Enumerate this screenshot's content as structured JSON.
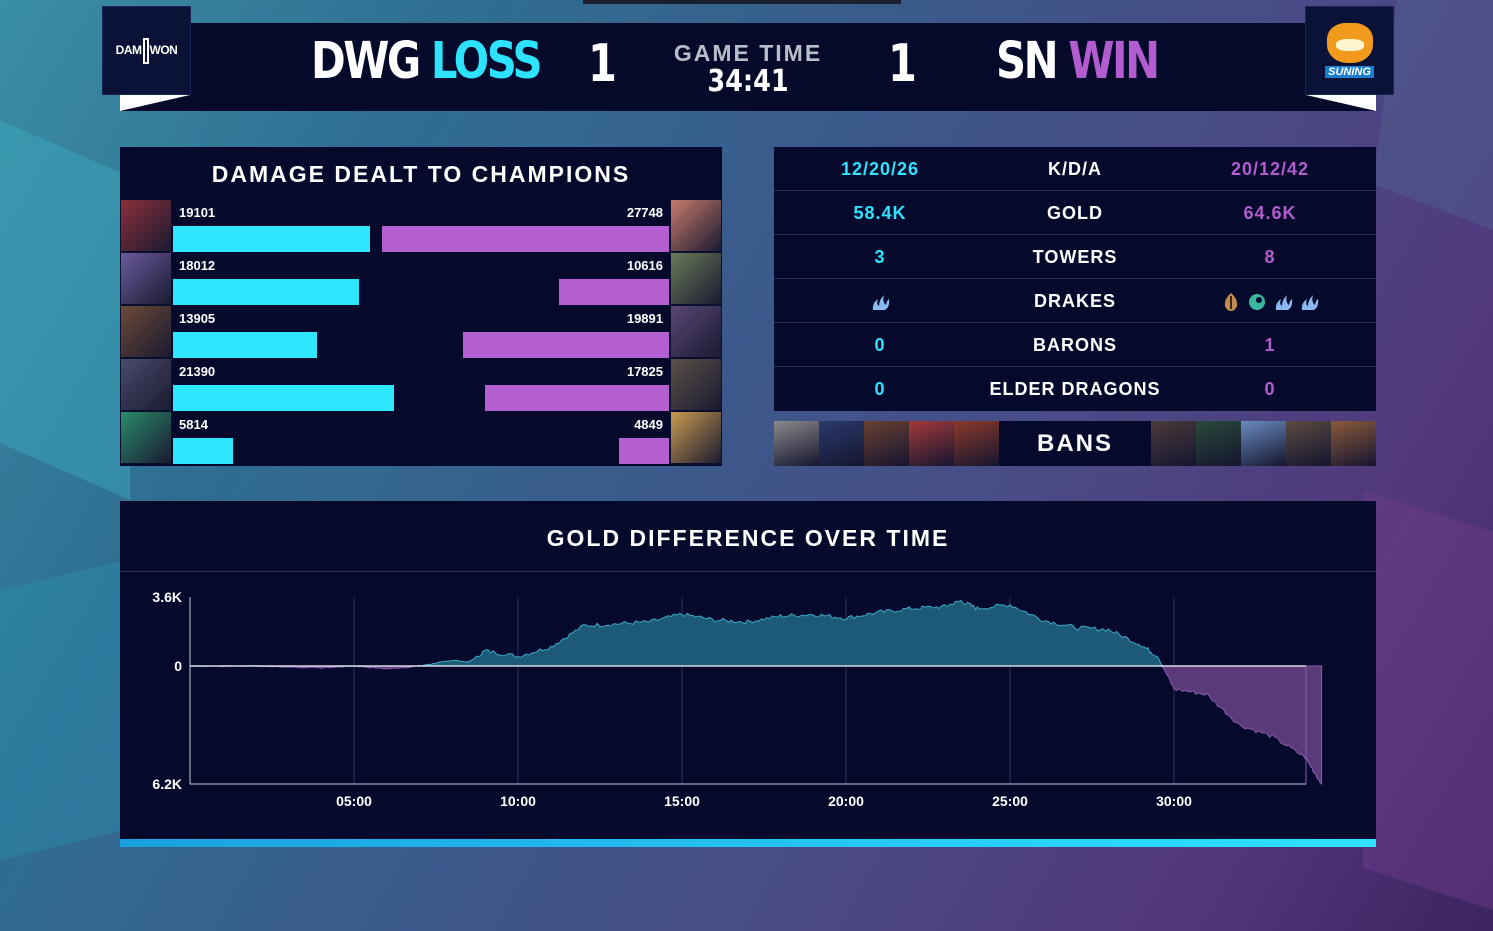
{
  "header": {
    "left_team": {
      "tag": "DWG",
      "result": "LOSS",
      "score": "1"
    },
    "right_team": {
      "tag": "SN",
      "result": "WIN",
      "score": "1"
    },
    "game_time_label": "GAME TIME",
    "game_time": "34:41",
    "left_logo_text": {
      "a": "DAM",
      "b": "WON"
    },
    "right_logo_text": "SUNING"
  },
  "damage": {
    "title": "DAMAGE DEALT TO CHAMPIONS",
    "max": 30000,
    "rows": [
      {
        "blue": 19101,
        "blue_label": "19101",
        "red": 27748,
        "red_label": "27748",
        "blue_color": "#8a2f3b",
        "red_color": "#c77b6c"
      },
      {
        "blue": 18012,
        "blue_label": "18012",
        "red": 10616,
        "red_label": "10616",
        "blue_color": "#6a5a9c",
        "red_color": "#6a7a58"
      },
      {
        "blue": 13905,
        "blue_label": "13905",
        "red": 19891,
        "red_label": "19891",
        "blue_color": "#6b4a36",
        "red_color": "#5a4678"
      },
      {
        "blue": 21390,
        "blue_label": "21390",
        "red": 17825,
        "red_label": "17825",
        "blue_color": "#4a4a6c",
        "red_color": "#5a5048"
      },
      {
        "blue": 5814,
        "blue_label": "5814",
        "red": 4849,
        "red_label": "4849",
        "blue_color": "#2a8a6c",
        "red_color": "#c99a50"
      }
    ]
  },
  "stats": {
    "rows": [
      {
        "left": "12/20/26",
        "label": "K/D/A",
        "right": "20/12/42"
      },
      {
        "left": "58.4K",
        "label": "GOLD",
        "right": "64.6K"
      },
      {
        "left": "3",
        "label": "TOWERS",
        "right": "8"
      },
      {
        "left": "",
        "label": "DRAKES",
        "right": ""
      },
      {
        "left": "0",
        "label": "BARONS",
        "right": "1"
      },
      {
        "left": "0",
        "label": "ELDER DRAGONS",
        "right": "0"
      }
    ],
    "drakes_left": [
      "cloud"
    ],
    "drakes_right": [
      "mountain",
      "ocean",
      "cloud",
      "cloud"
    ]
  },
  "bans": {
    "label": "BANS",
    "left": [
      "#8a8a8a",
      "#2a3a6a",
      "#6a4030",
      "#a23a3a",
      "#8a3a2a"
    ],
    "right": [
      "#4a3a3a",
      "#2a4a3a",
      "#6a8ac0",
      "#5a4a40",
      "#8a5a3a"
    ]
  },
  "gold_chart": {
    "title": "GOLD DIFFERENCE OVER TIME",
    "y_labels": [
      "3.6K",
      "0",
      "6.2K"
    ],
    "x_labels": [
      "05:00",
      "10:00",
      "15:00",
      "20:00",
      "25:00",
      "30:00"
    ]
  },
  "chart_data": {
    "type": "area",
    "title": "GOLD DIFFERENCE OVER TIME",
    "xlabel": "",
    "ylabel": "",
    "y_range": [
      -6200,
      3600
    ],
    "x_ticks": [
      "05:00",
      "10:00",
      "15:00",
      "20:00",
      "25:00",
      "30:00"
    ],
    "x_minutes": [
      0,
      2,
      4,
      5,
      6,
      7,
      7.5,
      8,
      8.5,
      9,
      10,
      11,
      12,
      13,
      14,
      15,
      16,
      17,
      18,
      19,
      20,
      21,
      22,
      23,
      23.5,
      24,
      25,
      26,
      27,
      28,
      29,
      29.5,
      30,
      31,
      32,
      33,
      34,
      34.5
    ],
    "series": [
      {
        "values": [
          0,
          0,
          -100,
          0,
          -150,
          0,
          150,
          300,
          200,
          800,
          500,
          1000,
          2100,
          2200,
          2300,
          2700,
          2400,
          2300,
          2600,
          2700,
          2500,
          2800,
          3000,
          3100,
          3400,
          3000,
          3200,
          2400,
          2000,
          1900,
          1100,
          500,
          -1200,
          -1500,
          -3100,
          -3700,
          -4800,
          -6200
        ]
      }
    ]
  }
}
